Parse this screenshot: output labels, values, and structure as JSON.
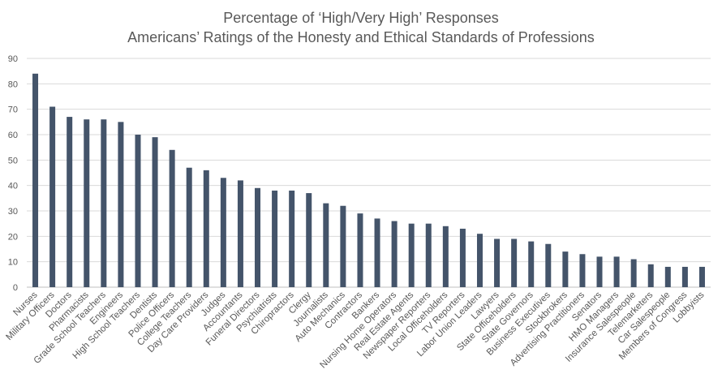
{
  "chart_data": {
    "type": "bar",
    "title": "Percentage of ‘High/Very High’ Responses",
    "subtitle": "Americans’ Ratings of the Honesty and Ethical Standards of Professions",
    "xlabel": "",
    "ylabel": "",
    "ylim": [
      0,
      90
    ],
    "yticks": [
      0,
      10,
      20,
      30,
      40,
      50,
      60,
      70,
      80,
      90
    ],
    "grid": true,
    "legend": "none",
    "bar_color": "#44546a",
    "categories": [
      "Nurses",
      "Military Officers",
      "Doctors",
      "Pharmacists",
      "Grade School Teachers",
      "Engineers",
      "High School Teachers",
      "Dentists",
      "Police Officers",
      "College Teachers",
      "Day Care Providers",
      "Judges",
      "Accountants",
      "Funeral Directors",
      "Psychiatrists",
      "Chiropractors",
      "Clergy",
      "Journalists",
      "Auto Mechanics",
      "Contractors",
      "Bankers",
      "Nursing Home Operators",
      "Real Estate Agents",
      "Newspaper Reporters",
      "Local Officeholders",
      "TV Reporters",
      "Labor Union Leaders",
      "Lawyers",
      "State Officeholders",
      "State Governors",
      "Business Executives",
      "Stockbrokers",
      "Advertising Practitioners",
      "Senators",
      "HMO Managers",
      "Insurance Salespeople",
      "Telemarketers",
      "Car Salespeople",
      "Members of Congress",
      "Lobbyists"
    ],
    "values": [
      84,
      71,
      67,
      66,
      66,
      65,
      60,
      59,
      54,
      47,
      46,
      43,
      42,
      39,
      38,
      38,
      37,
      33,
      32,
      29,
      27,
      26,
      25,
      25,
      24,
      23,
      21,
      19,
      19,
      18,
      17,
      14,
      13,
      12,
      12,
      11,
      9,
      8,
      8,
      8
    ]
  }
}
